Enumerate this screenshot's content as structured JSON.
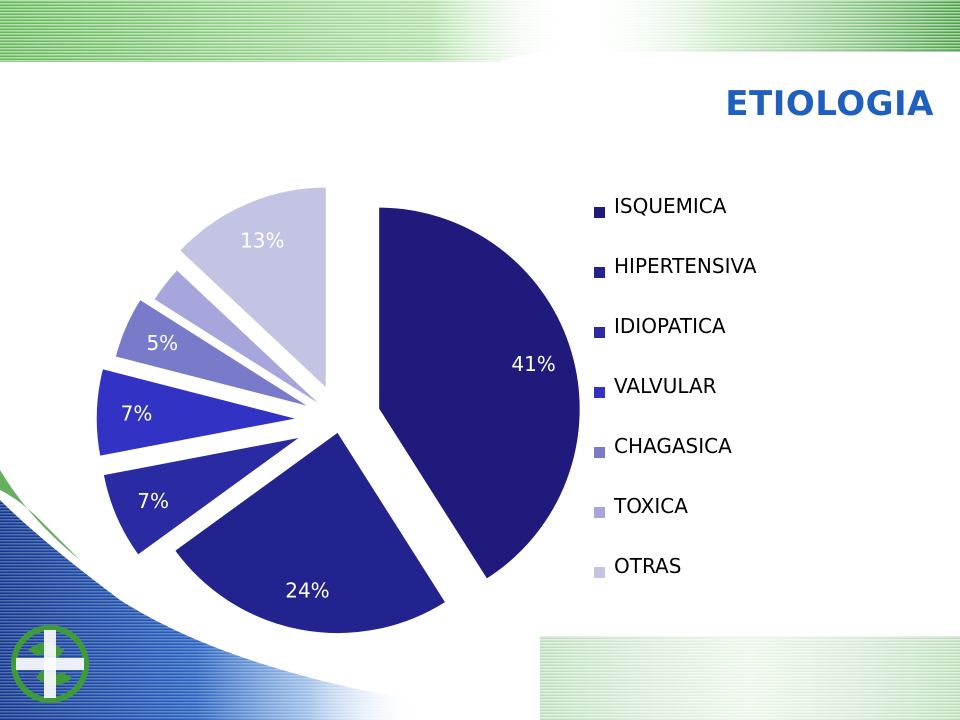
{
  "slide": {
    "title": "ETIOLOGIA"
  },
  "chart_data": {
    "type": "pie",
    "title": "",
    "categories": [
      "ISQUEMICA",
      "HIPERTENSIVA",
      "IDIOPATICA",
      "VALVULAR",
      "CHAGASICA",
      "TOXICA",
      "OTRAS"
    ],
    "values": [
      41,
      24,
      7,
      7,
      5,
      3,
      13
    ],
    "value_labels": [
      "41%",
      "24%",
      "7%",
      "7%",
      "5%",
      "",
      "13%"
    ],
    "colors": [
      "#1f1a7c",
      "#232390",
      "#2a2aa2",
      "#3232c4",
      "#7a7acb",
      "#a6a6dc",
      "#c3c3e4"
    ],
    "label_colors": [
      "#ffffff",
      "#ffffff",
      "#ffffff",
      "#ffffff",
      "#ffffff",
      "#ffffff",
      "#ffffff"
    ],
    "exploded": true,
    "legend_position": "right"
  },
  "decor": {
    "accent_green": "#3f9b3a",
    "accent_blue": "#1f55b0"
  }
}
